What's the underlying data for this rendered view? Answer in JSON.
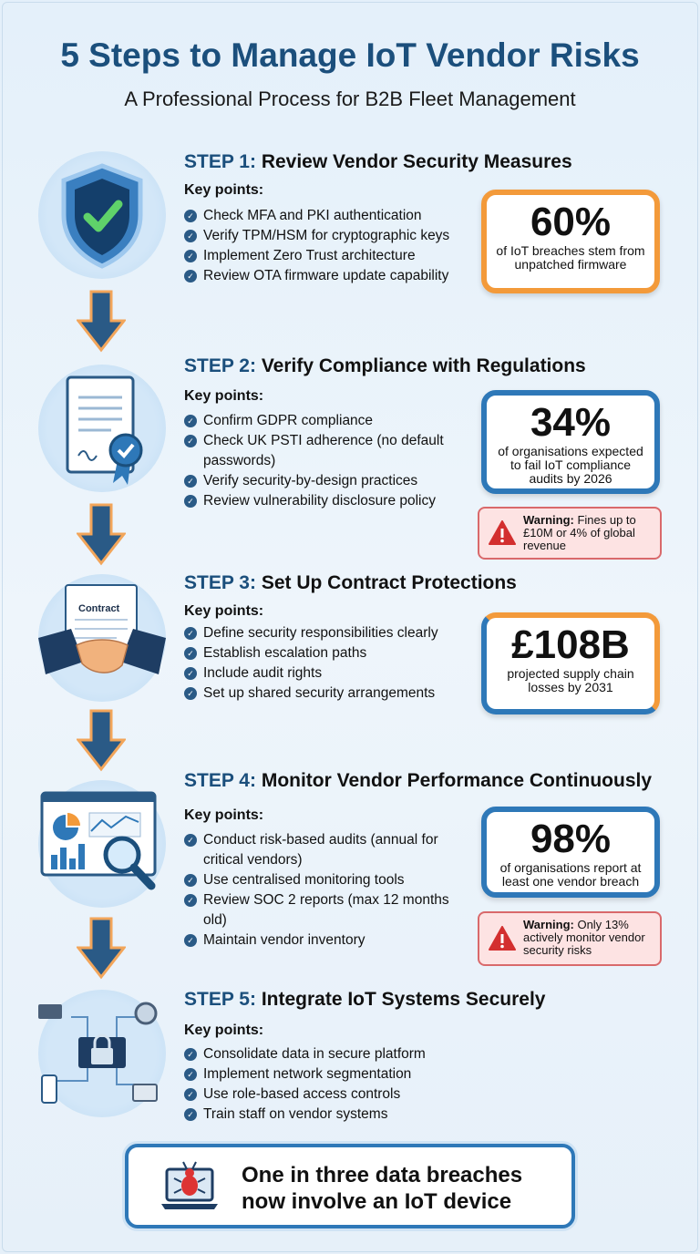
{
  "header": {
    "title": "5 Steps to Manage IoT Vendor Risks",
    "subtitle": "A Professional Process for B2B Fleet Management"
  },
  "key_points_label": "Key points:",
  "steps": [
    {
      "num": "STEP 1:",
      "title": "Review Vendor Security Measures",
      "icon": "shield-check-icon",
      "points": [
        "Check MFA and PKI authentication",
        "Verify TPM/HSM for cryptographic keys",
        "Implement Zero Trust architecture",
        "Review OTA firmware update capability"
      ],
      "stat": {
        "value": "60%",
        "text": "of IoT breaches stem from unpatched firmware"
      }
    },
    {
      "num": "STEP 2:",
      "title": "Verify Compliance with Regulations",
      "icon": "certificate-icon",
      "points": [
        "Confirm GDPR compliance",
        "Check UK PSTI adherence (no default passwords)",
        "Verify security-by-design practices",
        "Review vulnerability disclosure policy"
      ],
      "stat": {
        "value": "34%",
        "text": "of organisations expected to fail IoT compliance audits by 2026"
      },
      "warning": {
        "label": "Warning:",
        "text": " Fines up to £10M or 4% of global revenue"
      }
    },
    {
      "num": "STEP 3:",
      "title": "Set Up Contract Protections",
      "icon": "handshake-contract-icon",
      "icon_label": "Contract",
      "points": [
        "Define security responsibilities clearly",
        "Establish escalation paths",
        "Include audit rights",
        "Set up shared security arrangements"
      ],
      "stat": {
        "value": "£108B",
        "text": "projected supply chain losses by 2031"
      }
    },
    {
      "num": "STEP 4:",
      "title": "Monitor Vendor Performance Continuously",
      "icon": "dashboard-magnifier-icon",
      "points": [
        "Conduct risk-based audits (annual for critical vendors)",
        "Use centralised monitoring tools",
        "Review SOC 2 reports (max 12 months old)",
        "Maintain vendor inventory"
      ],
      "stat": {
        "value": "98%",
        "text": "of organisations report at least one vendor breach"
      },
      "warning": {
        "label": "Warning:",
        "text": " Only 13% actively monitor vendor security risks"
      }
    },
    {
      "num": "STEP 5:",
      "title": "Integrate IoT Systems Securely",
      "icon": "network-lock-icon",
      "points": [
        "Consolidate data in secure platform",
        "Implement network segmentation",
        "Use role-based access controls",
        "Train staff on vendor systems"
      ]
    }
  ],
  "banner": {
    "text": "One in three data breaches now involve an IoT device",
    "icon": "laptop-bug-icon"
  },
  "colors": {
    "primary": "#1b4f7c",
    "accent_blue": "#2e78b8",
    "accent_orange": "#f39a3a",
    "warning": "#d32f2f"
  }
}
